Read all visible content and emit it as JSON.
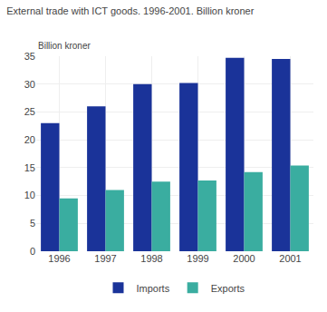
{
  "chart_data": {
    "type": "bar",
    "title": "External trade with ICT goods. 1996-2001. Billion kroner",
    "subtitle": "Billion kroner",
    "categories": [
      "1996",
      "1997",
      "1998",
      "1999",
      "2000",
      "2001"
    ],
    "series": [
      {
        "name": "Imports",
        "color": "#1a3399",
        "values": [
          23.0,
          26.0,
          30.0,
          30.2,
          34.7,
          34.5
        ]
      },
      {
        "name": "Exports",
        "color": "#3aada0",
        "values": [
          9.5,
          11.0,
          12.5,
          12.7,
          14.2,
          15.4
        ]
      }
    ],
    "ylim": [
      0,
      35
    ],
    "yticks": [
      0,
      5,
      10,
      15,
      20,
      25,
      30,
      35
    ],
    "grid": true,
    "legend": "bottom"
  }
}
